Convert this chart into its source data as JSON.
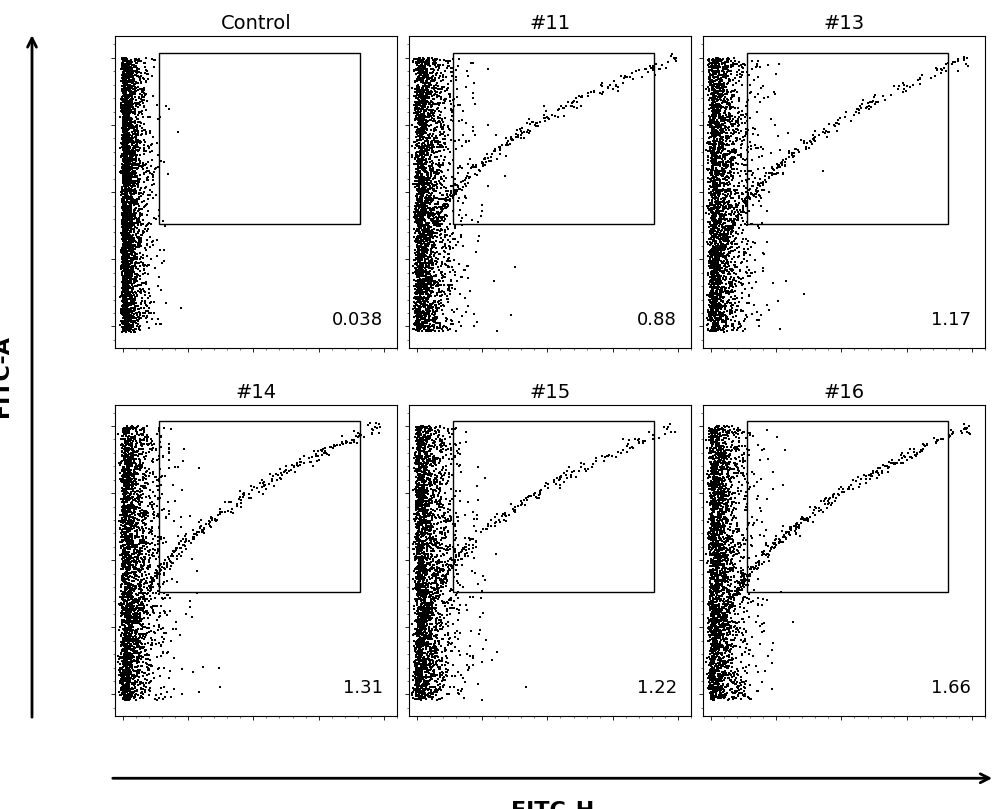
{
  "panels": [
    {
      "title": "Control",
      "value": "0.038",
      "row": 0,
      "col": 0
    },
    {
      "title": "#11",
      "value": "0.88",
      "row": 0,
      "col": 1
    },
    {
      "title": "#13",
      "value": "1.17",
      "row": 0,
      "col": 2
    },
    {
      "title": "#14",
      "value": "1.31",
      "row": 1,
      "col": 0
    },
    {
      "title": "#15",
      "value": "1.22",
      "row": 1,
      "col": 1
    },
    {
      "title": "#16",
      "value": "1.66",
      "row": 1,
      "col": 2
    }
  ],
  "xlabel": "FITC-H",
  "ylabel": "FITC-A",
  "bg_color": "#ffffff",
  "dot_color": "#000000",
  "n_points": 3000,
  "seed": 42,
  "box_params": {
    "Control": [
      0.18,
      0.42,
      0.8,
      0.56
    ],
    "#11": [
      0.18,
      0.42,
      0.8,
      0.56
    ],
    "#13": [
      0.18,
      0.42,
      0.8,
      0.56
    ],
    "#14": [
      0.18,
      0.42,
      0.8,
      0.56
    ],
    "#15": [
      0.18,
      0.42,
      0.8,
      0.56
    ],
    "#16": [
      0.18,
      0.42,
      0.8,
      0.56
    ]
  }
}
